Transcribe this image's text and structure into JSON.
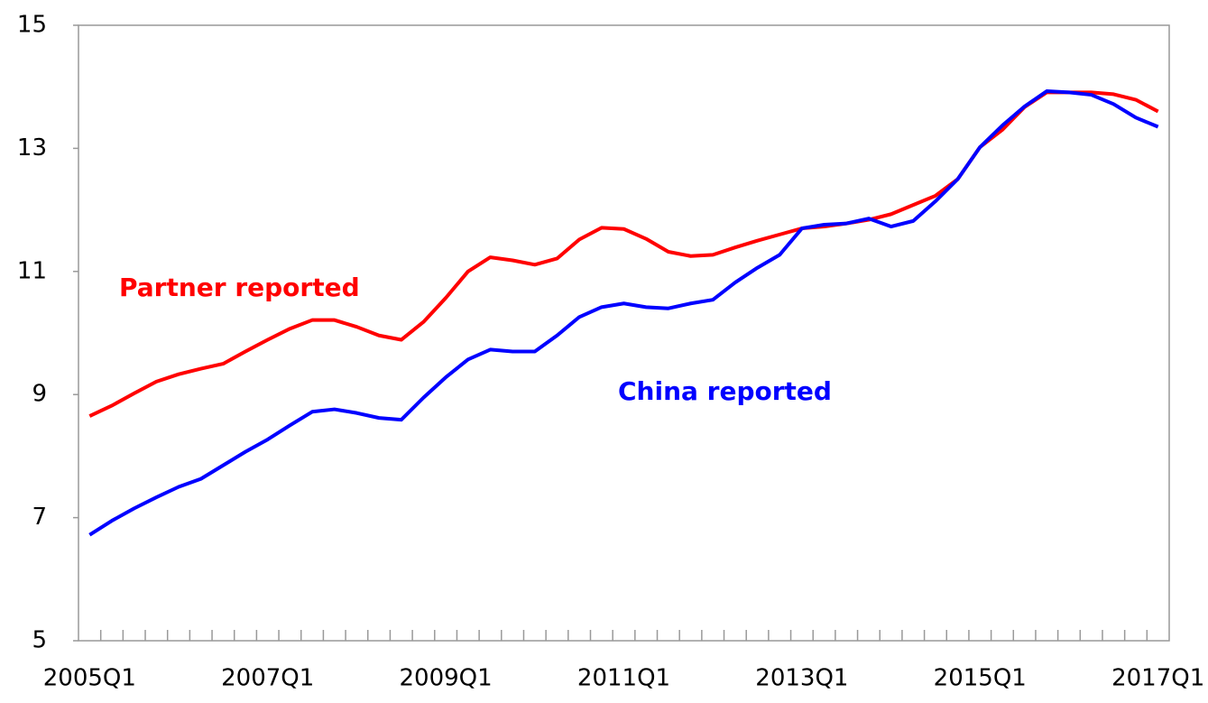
{
  "chart_data": {
    "type": "line",
    "categories": [
      "2005Q1",
      null,
      null,
      null,
      null,
      null,
      null,
      null,
      "2007Q1",
      null,
      null,
      null,
      null,
      null,
      null,
      null,
      "2009Q1",
      null,
      null,
      null,
      null,
      null,
      null,
      null,
      "2011Q1",
      null,
      null,
      null,
      null,
      null,
      null,
      null,
      "2013Q1",
      null,
      null,
      null,
      null,
      null,
      null,
      null,
      "2015Q1",
      null,
      null,
      null,
      null,
      null,
      null,
      null,
      "2017Q1"
    ],
    "series": [
      {
        "name": "Partner reported",
        "color": "#ff0000",
        "values": [
          8.65,
          8.82,
          9.02,
          9.21,
          9.33,
          9.42,
          9.5,
          9.7,
          9.89,
          10.07,
          10.21,
          10.21,
          10.1,
          9.96,
          9.89,
          10.18,
          10.57,
          11.0,
          11.23,
          11.18,
          11.11,
          11.21,
          11.52,
          11.71,
          11.69,
          11.53,
          11.32,
          11.25,
          11.27,
          11.39,
          11.5,
          11.6,
          11.7,
          11.73,
          11.78,
          11.84,
          11.93,
          12.08,
          12.23,
          12.5,
          13.02,
          13.3,
          13.67,
          13.91,
          13.91,
          13.91,
          13.88,
          13.79,
          13.6
        ]
      },
      {
        "name": "China reported",
        "color": "#0000ff",
        "values": [
          6.72,
          6.95,
          7.15,
          7.33,
          7.5,
          7.63,
          7.85,
          8.07,
          8.27,
          8.5,
          8.72,
          8.76,
          8.7,
          8.62,
          8.59,
          8.95,
          9.28,
          9.57,
          9.73,
          9.7,
          9.7,
          9.96,
          10.26,
          10.42,
          10.48,
          10.42,
          10.4,
          10.48,
          10.54,
          10.82,
          11.06,
          11.27,
          11.7,
          11.76,
          11.78,
          11.86,
          11.73,
          11.82,
          12.14,
          12.5,
          13.02,
          13.37,
          13.68,
          13.93,
          13.91,
          13.87,
          13.72,
          13.5,
          13.35
        ]
      }
    ],
    "ylim": [
      5,
      15
    ],
    "yticks": [
      5,
      7,
      9,
      11,
      13,
      15
    ]
  }
}
